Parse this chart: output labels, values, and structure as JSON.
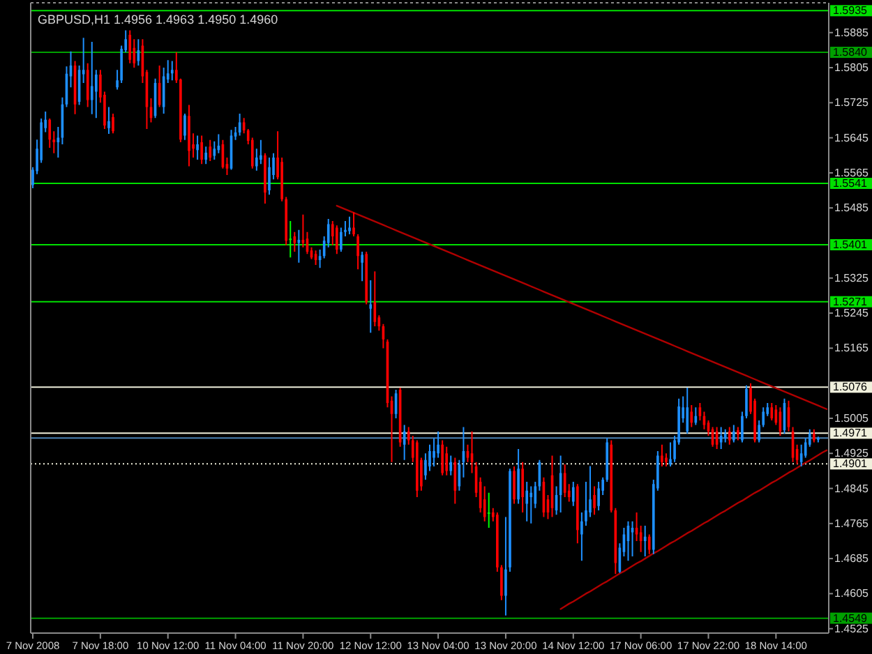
{
  "chart_data": {
    "type": "candlestick",
    "title": "GBPUSD,H1 1.4956 1.4963 1.4950 1.4960",
    "categories": [
      "7 Nov 2008",
      null,
      null,
      null,
      null,
      null,
      null,
      null,
      null,
      null,
      null,
      null,
      null,
      null,
      null,
      null,
      "7 Nov 18:00",
      null,
      null,
      null,
      null,
      null,
      null,
      null,
      null,
      null,
      null,
      null,
      null,
      null,
      null,
      null,
      "10 Nov 12:00",
      null,
      null,
      null,
      null,
      null,
      null,
      null,
      null,
      null,
      null,
      null,
      null,
      null,
      null,
      null,
      "11 Nov 04:00",
      null,
      null,
      null,
      null,
      null,
      null,
      null,
      null,
      null,
      null,
      null,
      null,
      null,
      null,
      null,
      "11 Nov 20:00",
      null,
      null,
      null,
      null,
      null,
      null,
      null,
      null,
      null,
      null,
      null,
      null,
      null,
      null,
      null,
      "12 Nov 12:00",
      null,
      null,
      null,
      null,
      null,
      null,
      null,
      null,
      null,
      null,
      null,
      null,
      null,
      null,
      null,
      "13 Nov 04:00",
      null,
      null,
      null,
      null,
      null,
      null,
      null,
      null,
      null,
      null,
      null,
      null,
      null,
      null,
      null,
      "13 Nov 20:00",
      null,
      null,
      null,
      null,
      null,
      null,
      null,
      null,
      null,
      null,
      null,
      null,
      null,
      null,
      null,
      "14 Nov 12:00",
      null,
      null,
      null,
      null,
      null,
      null,
      null,
      null,
      null,
      null,
      null,
      null,
      null,
      null,
      null,
      "17 Nov 06:00",
      null,
      null,
      null,
      null,
      null,
      null,
      null,
      null,
      null,
      null,
      null,
      null,
      null,
      null,
      null,
      "17 Nov 22:00",
      null,
      null,
      null,
      null,
      null,
      null,
      null,
      null,
      null,
      null,
      null,
      null,
      null,
      null,
      null,
      "18 Nov 14:00",
      null,
      null,
      null,
      null,
      null,
      null,
      null,
      null,
      null,
      null,
      null,
      null
    ],
    "ohlc": [
      [
        1.5537,
        1.5578,
        1.553,
        1.5572
      ],
      [
        1.5569,
        1.5641,
        1.5562,
        1.562
      ],
      [
        1.5594,
        1.5689,
        1.5588,
        1.568
      ],
      [
        1.5667,
        1.5705,
        1.5658,
        1.5686
      ],
      [
        1.5686,
        1.5689,
        1.5622,
        1.5641
      ],
      [
        1.5641,
        1.566,
        1.561,
        1.5635
      ],
      [
        1.5635,
        1.567,
        1.56,
        1.5645
      ],
      [
        1.5645,
        1.5737,
        1.563,
        1.5721
      ],
      [
        1.5721,
        1.5808,
        1.5715,
        1.5791
      ],
      [
        1.5785,
        1.5842,
        1.576,
        1.581
      ],
      [
        1.581,
        1.582,
        1.5699,
        1.5721
      ],
      [
        1.5727,
        1.581,
        1.572,
        1.58
      ],
      [
        1.579,
        1.5873,
        1.577,
        1.58
      ],
      [
        1.58,
        1.5815,
        1.5715,
        1.5731
      ],
      [
        1.5731,
        1.5864,
        1.5699,
        1.5763
      ],
      [
        1.575,
        1.58,
        1.569,
        1.5789
      ],
      [
        1.5789,
        1.58,
        1.5725,
        1.5737
      ],
      [
        1.5743,
        1.575,
        1.5665,
        1.5673
      ],
      [
        1.5667,
        1.5715,
        1.5654,
        1.5683
      ],
      [
        1.5692,
        1.57,
        1.5655,
        1.566
      ],
      [
        1.576,
        1.58,
        1.5755,
        1.5776
      ],
      [
        1.5776,
        1.5855,
        1.577,
        1.5848
      ],
      [
        1.5845,
        1.589,
        1.584,
        1.587
      ],
      [
        1.588,
        1.589,
        1.5815,
        1.5823
      ],
      [
        1.585,
        1.587,
        1.5805,
        1.5815
      ],
      [
        1.582,
        1.587,
        1.581,
        1.5845
      ],
      [
        1.5855,
        1.587,
        1.577,
        1.5785
      ],
      [
        1.5795,
        1.58,
        1.5665,
        1.5715
      ],
      [
        1.5715,
        1.5735,
        1.568,
        1.569
      ],
      [
        1.5695,
        1.578,
        1.569,
        1.577
      ],
      [
        1.577,
        1.581,
        1.5715,
        1.572
      ],
      [
        1.5715,
        1.5805,
        1.57,
        1.5785
      ],
      [
        1.5778,
        1.5822,
        1.577,
        1.5792
      ],
      [
        1.5792,
        1.582,
        1.5776,
        1.58
      ],
      [
        1.58,
        1.584,
        1.577,
        1.5776
      ],
      [
        1.5778,
        1.578,
        1.5635,
        1.5641
      ],
      [
        1.565,
        1.57,
        1.564,
        1.5696
      ],
      [
        1.5695,
        1.572,
        1.558,
        1.5615
      ],
      [
        1.563,
        1.5655,
        1.56,
        1.562
      ],
      [
        1.5617,
        1.565,
        1.5595,
        1.563
      ],
      [
        1.5635,
        1.565,
        1.5585,
        1.5595
      ],
      [
        1.5595,
        1.5625,
        1.5585,
        1.5611
      ],
      [
        1.5625,
        1.564,
        1.5592,
        1.56
      ],
      [
        1.5604,
        1.5637,
        1.5595,
        1.562
      ],
      [
        1.5617,
        1.5653,
        1.561,
        1.5627
      ],
      [
        1.563,
        1.564,
        1.5575,
        1.5578
      ],
      [
        1.5585,
        1.56,
        1.556,
        1.5575
      ],
      [
        1.5575,
        1.5663,
        1.5572,
        1.565
      ],
      [
        1.5648,
        1.567,
        1.564,
        1.5657
      ],
      [
        1.5657,
        1.57,
        1.565,
        1.568
      ],
      [
        1.568,
        1.569,
        1.5655,
        1.5662
      ],
      [
        1.5662,
        1.5665,
        1.563,
        1.5638
      ],
      [
        1.564,
        1.5645,
        1.5575,
        1.558
      ],
      [
        1.558,
        1.562,
        1.557,
        1.56
      ],
      [
        1.5595,
        1.564,
        1.5585,
        1.5605
      ],
      [
        1.5605,
        1.561,
        1.5495,
        1.552
      ],
      [
        1.5525,
        1.56,
        1.5515,
        1.5578
      ],
      [
        1.556,
        1.561,
        1.555,
        1.56
      ],
      [
        1.56,
        1.566,
        1.555,
        1.5555
      ],
      [
        1.559,
        1.56,
        1.55,
        1.5505
      ],
      [
        1.5505,
        1.551,
        1.54,
        1.541
      ],
      [
        1.5415,
        1.5455,
        1.5372,
        1.5415
      ],
      [
        1.542,
        1.543,
        1.5385,
        1.5405
      ],
      [
        1.5405,
        1.5435,
        1.536,
        1.5412
      ],
      [
        1.5412,
        1.547,
        1.5395,
        1.5405
      ],
      [
        1.5415,
        1.543,
        1.538,
        1.5385
      ],
      [
        1.5388,
        1.5395,
        1.5368,
        1.5372
      ],
      [
        1.538,
        1.5388,
        1.5355,
        1.5366
      ],
      [
        1.5366,
        1.539,
        1.5348,
        1.5375
      ],
      [
        1.5375,
        1.542,
        1.537,
        1.541
      ],
      [
        1.5405,
        1.546,
        1.5395,
        1.5448
      ],
      [
        1.5448,
        1.5455,
        1.54,
        1.542
      ],
      [
        1.544,
        1.5445,
        1.538,
        1.539
      ],
      [
        1.539,
        1.544,
        1.5385,
        1.543
      ],
      [
        1.543,
        1.5455,
        1.542,
        1.5435
      ],
      [
        1.5432,
        1.5465,
        1.5425,
        1.544
      ],
      [
        1.544,
        1.5475,
        1.542,
        1.5425
      ],
      [
        1.542,
        1.5425,
        1.5345,
        1.5375
      ],
      [
        1.536,
        1.5385,
        1.5318,
        1.5378
      ],
      [
        1.538,
        1.5385,
        1.5265,
        1.527
      ],
      [
        1.5255,
        1.532,
        1.52,
        1.5265
      ],
      [
        1.527,
        1.534,
        1.5215,
        1.5225
      ],
      [
        1.5235,
        1.524,
        1.5205,
        1.5215
      ],
      [
        1.5215,
        1.522,
        1.5165,
        1.5185
      ],
      [
        1.518,
        1.5185,
        1.503,
        1.504
      ],
      [
        1.5045,
        1.5055,
        1.4905,
        1.5015
      ],
      [
        1.5015,
        1.507,
        1.5005,
        1.5062
      ],
      [
        1.507,
        1.5075,
        1.494,
        1.495
      ],
      [
        1.4945,
        1.499,
        1.491,
        1.4975
      ],
      [
        1.4975,
        1.4985,
        1.4945,
        1.4955
      ],
      [
        1.4955,
        1.4965,
        1.4905,
        1.4915
      ],
      [
        1.495,
        1.4955,
        1.4825,
        1.484
      ],
      [
        1.491,
        1.4915,
        1.484,
        1.485
      ],
      [
        1.4875,
        1.4925,
        1.4865,
        1.491
      ],
      [
        1.4895,
        1.4945,
        1.4885,
        1.493
      ],
      [
        1.4915,
        1.496,
        1.4895,
        1.493
      ],
      [
        1.4925,
        1.4975,
        1.4915,
        1.4945
      ],
      [
        1.4945,
        1.4955,
        1.4875,
        1.488
      ],
      [
        1.4925,
        1.494,
        1.4875,
        1.4885
      ],
      [
        1.4885,
        1.492,
        1.4875,
        1.4905
      ],
      [
        1.4905,
        1.4915,
        1.481,
        1.484
      ],
      [
        1.485,
        1.491,
        1.484,
        1.49
      ],
      [
        1.4905,
        1.4985,
        1.487,
        1.493
      ],
      [
        1.493,
        1.4945,
        1.4905,
        1.4915
      ],
      [
        1.4925,
        1.4975,
        1.488,
        1.4905
      ],
      [
        1.4895,
        1.4905,
        1.4825,
        1.4835
      ],
      [
        1.486,
        1.487,
        1.479,
        1.48
      ],
      [
        1.482,
        1.485,
        1.477,
        1.478
      ],
      [
        1.479,
        1.4835,
        1.4755,
        1.479
      ],
      [
        1.479,
        1.48,
        1.477,
        1.478
      ],
      [
        1.4785,
        1.479,
        1.4655,
        1.4665
      ],
      [
        1.4665,
        1.467,
        1.459,
        1.46
      ],
      [
        1.46,
        1.478,
        1.4555,
        1.466
      ],
      [
        1.4665,
        1.489,
        1.4655,
        1.4885
      ],
      [
        1.4885,
        1.4895,
        1.481,
        1.482
      ],
      [
        1.482,
        1.4935,
        1.481,
        1.489
      ],
      [
        1.489,
        1.4905,
        1.479,
        1.4825
      ],
      [
        1.481,
        1.486,
        1.477,
        1.484
      ],
      [
        1.4825,
        1.485,
        1.4765,
        1.4835
      ],
      [
        1.481,
        1.486,
        1.48,
        1.485
      ],
      [
        1.485,
        1.491,
        1.484,
        1.4905
      ],
      [
        1.486,
        1.487,
        1.478,
        1.479
      ],
      [
        1.482,
        1.483,
        1.4775,
        1.479
      ],
      [
        1.4875,
        1.492,
        1.478,
        1.48
      ],
      [
        1.4795,
        1.485,
        1.4785,
        1.483
      ],
      [
        1.483,
        1.492,
        1.479,
        1.488
      ],
      [
        1.488,
        1.49,
        1.4825,
        1.4835
      ],
      [
        1.484,
        1.4855,
        1.4815,
        1.4825
      ],
      [
        1.4815,
        1.486,
        1.4805,
        1.4848
      ],
      [
        1.485,
        1.4855,
        1.472,
        1.475
      ],
      [
        1.474,
        1.479,
        1.468,
        1.477
      ],
      [
        1.477,
        1.486,
        1.476,
        1.4795
      ],
      [
        1.479,
        1.4896,
        1.478,
        1.482
      ],
      [
        1.483,
        1.485,
        1.4785,
        1.48
      ],
      [
        1.4805,
        1.486,
        1.4795,
        1.4845
      ],
      [
        1.484,
        1.487,
        1.483,
        1.4865
      ],
      [
        1.4865,
        1.496,
        1.486,
        1.495
      ],
      [
        1.4945,
        1.4955,
        1.479,
        1.4795
      ],
      [
        1.4795,
        1.48,
        1.465,
        1.4675
      ],
      [
        1.4655,
        1.472,
        1.4652,
        1.471
      ],
      [
        1.47,
        1.4755,
        1.469,
        1.474
      ],
      [
        1.4725,
        1.477,
        1.468,
        1.476
      ],
      [
        1.4745,
        1.477,
        1.469,
        1.4755
      ],
      [
        1.4755,
        1.479,
        1.4725,
        1.474
      ],
      [
        1.4745,
        1.476,
        1.47,
        1.4725
      ],
      [
        1.4725,
        1.476,
        1.469,
        1.4735
      ],
      [
        1.4735,
        1.474,
        1.4695,
        1.4705
      ],
      [
        1.4705,
        1.4865,
        1.4695,
        1.4855
      ],
      [
        1.4845,
        1.493,
        1.484,
        1.492
      ],
      [
        1.492,
        1.4945,
        1.4895,
        1.4905
      ],
      [
        1.4915,
        1.4925,
        1.4895,
        1.4905
      ],
      [
        1.49,
        1.495,
        1.4895,
        1.4912
      ],
      [
        1.4912,
        1.4965,
        1.4905,
        1.4955
      ],
      [
        1.495,
        1.505,
        1.4945,
        1.5032
      ],
      [
        1.5005,
        1.5055,
        1.4995,
        1.503
      ],
      [
        1.4975,
        1.5075,
        1.497,
        1.503
      ],
      [
        1.502,
        1.5035,
        1.4985,
        1.4995
      ],
      [
        1.4995,
        1.503,
        1.499,
        1.501
      ],
      [
        1.503,
        1.504,
        1.5,
        1.501
      ],
      [
        1.501,
        1.502,
        1.498,
        1.499
      ],
      [
        1.4995,
        1.5,
        1.4965,
        1.4975
      ],
      [
        1.498,
        1.4985,
        1.494,
        1.4945
      ],
      [
        1.4975,
        1.4985,
        1.4935,
        1.4945
      ],
      [
        1.495,
        1.4985,
        1.4935,
        1.4965
      ],
      [
        1.496,
        1.498,
        1.495,
        1.497
      ],
      [
        1.4975,
        1.4985,
        1.4945,
        1.4955
      ],
      [
        1.4955,
        1.499,
        1.495,
        1.4975
      ],
      [
        1.4978,
        1.4985,
        1.4955,
        1.4968
      ],
      [
        1.4955,
        1.502,
        1.495,
        1.501
      ],
      [
        1.501,
        1.508,
        1.5005,
        1.5072
      ],
      [
        1.5075,
        1.5085,
        1.5015,
        1.502
      ],
      [
        1.5045,
        1.505,
        1.495,
        1.4955
      ],
      [
        1.4955,
        1.5,
        1.495,
        1.499
      ],
      [
        1.499,
        1.503,
        1.4985,
        1.502
      ],
      [
        1.5015,
        1.504,
        1.501,
        1.503
      ],
      [
        1.503,
        1.504,
        1.5,
        1.5005
      ],
      [
        1.5025,
        1.5035,
        1.499,
        1.4995
      ],
      [
        1.502,
        1.503,
        1.4965,
        1.4975
      ],
      [
        1.4978,
        1.505,
        1.497,
        1.504
      ],
      [
        1.503,
        1.5045,
        1.4975,
        1.4985
      ],
      [
        1.4975,
        1.4985,
        1.4905,
        1.4915
      ],
      [
        1.4935,
        1.4945,
        1.49,
        1.491
      ],
      [
        1.4905,
        1.4945,
        1.4895,
        1.4925
      ],
      [
        1.492,
        1.496,
        1.4915,
        1.495
      ],
      [
        1.4945,
        1.498,
        1.494,
        1.497
      ],
      [
        1.497,
        1.498,
        1.495,
        1.4955
      ],
      [
        1.4956,
        1.4963,
        1.495,
        1.496
      ],
      null,
      null
    ],
    "colors": [
      "#1e90ff",
      "#1e90ff",
      "#1e90ff",
      "#1e90ff",
      "#ff0000",
      "#ff0000",
      "#1e90ff",
      "#1e90ff",
      "#1e90ff",
      "#1e90ff",
      "#ff0000",
      "#1e90ff",
      "#1e90ff",
      "#ff0000",
      "#1e90ff",
      "#1e90ff",
      "#ff0000",
      "#ff0000",
      "#1e90ff",
      "#ff0000",
      "#1e90ff",
      "#1e90ff",
      "#1e90ff",
      "#ff0000",
      "#ff0000",
      "#1e90ff",
      "#ff0000",
      "#ff0000",
      "#ff0000",
      "#1e90ff",
      "#ff0000",
      "#1e90ff",
      "#1e90ff",
      "#1e90ff",
      "#ff0000",
      "#ff0000",
      "#1e90ff",
      "#ff0000",
      "#ff0000",
      "#1e90ff",
      "#ff0000",
      "#1e90ff",
      "#ff0000",
      "#1e90ff",
      "#1e90ff",
      "#ff0000",
      "#ff0000",
      "#1e90ff",
      "#1e90ff",
      "#1e90ff",
      "#ff0000",
      "#ff0000",
      "#ff0000",
      "#1e90ff",
      "#1e90ff",
      "#ff0000",
      "#1e90ff",
      "#1e90ff",
      "#ff0000",
      "#ff0000",
      "#ff0000",
      "#00ff00",
      "#ff0000",
      "#1e90ff",
      "#ff0000",
      "#ff0000",
      "#ff0000",
      "#ff0000",
      "#1e90ff",
      "#1e90ff",
      "#1e90ff",
      "#ff0000",
      "#ff0000",
      "#1e90ff",
      "#1e90ff",
      "#1e90ff",
      "#ff0000",
      "#ff0000",
      "#1e90ff",
      "#ff0000",
      "#1e90ff",
      "#ff0000",
      "#ff0000",
      "#ff0000",
      "#ff0000",
      "#ff0000",
      "#1e90ff",
      "#ff0000",
      "#1e90ff",
      "#ff0000",
      "#ff0000",
      "#ff0000",
      "#ff0000",
      "#1e90ff",
      "#1e90ff",
      "#1e90ff",
      "#1e90ff",
      "#ff0000",
      "#ff0000",
      "#1e90ff",
      "#ff0000",
      "#1e90ff",
      "#1e90ff",
      "#ff0000",
      "#ff0000",
      "#ff0000",
      "#ff0000",
      "#ff0000",
      "#00ff00",
      "#ff0000",
      "#ff0000",
      "#ff0000",
      "#1e90ff",
      "#1e90ff",
      "#ff0000",
      "#1e90ff",
      "#ff0000",
      "#1e90ff",
      "#1e90ff",
      "#1e90ff",
      "#1e90ff",
      "#ff0000",
      "#ff0000",
      "#ff0000",
      "#1e90ff",
      "#1e90ff",
      "#ff0000",
      "#ff0000",
      "#1e90ff",
      "#ff0000",
      "#1e90ff",
      "#1e90ff",
      "#1e90ff",
      "#ff0000",
      "#1e90ff",
      "#1e90ff",
      "#1e90ff",
      "#ff0000",
      "#ff0000",
      "#1e90ff",
      "#1e90ff",
      "#1e90ff",
      "#1e90ff",
      "#ff0000",
      "#ff0000",
      "#1e90ff",
      "#ff0000",
      "#1e90ff",
      "#1e90ff",
      "#ff0000",
      "#ff0000",
      "#1e90ff",
      "#1e90ff",
      "#1e90ff",
      "#1e90ff",
      "#1e90ff",
      "#ff0000",
      "#1e90ff",
      "#ff0000",
      "#ff0000",
      "#ff0000",
      "#ff0000",
      "#ff0000",
      "#1e90ff",
      "#1e90ff",
      "#ff0000",
      "#1e90ff",
      "#ff0000",
      "#1e90ff",
      "#1e90ff",
      "#ff0000",
      "#ff0000",
      "#1e90ff",
      "#1e90ff",
      "#1e90ff",
      "#ff0000",
      "#ff0000",
      "#ff0000",
      "#1e90ff",
      "#ff0000",
      "#ff0000",
      "#ff0000",
      "#1e90ff",
      "#1e90ff",
      "#1e90ff",
      "#ff0000",
      "#1e90ff",
      null,
      null
    ],
    "series": [
      {
        "type": "line",
        "color": "#b00000",
        "values": [
          null,
          null,
          null,
          null,
          null,
          null,
          null,
          null,
          null,
          null,
          null,
          null,
          null,
          null,
          null,
          null,
          null,
          null,
          null,
          null,
          null,
          null,
          null,
          null,
          null,
          null,
          null,
          null,
          null,
          null,
          null,
          null,
          null,
          null,
          null,
          null,
          null,
          null,
          null,
          null,
          null,
          null,
          null,
          null,
          null,
          null,
          null,
          null,
          null,
          null,
          null,
          null,
          null,
          null,
          null,
          null,
          null,
          null,
          null,
          null,
          null,
          null,
          null,
          null,
          null,
          null,
          null,
          null,
          null,
          null,
          null,
          null,
          1.549,
          1.5486,
          1.5482,
          1.5478,
          1.5474,
          1.547,
          1.5466,
          1.5462,
          1.5458,
          1.5454,
          1.545,
          1.5446,
          1.5442,
          1.5438,
          1.5434,
          1.543,
          1.5426,
          1.5422,
          1.5418,
          1.5414,
          1.541,
          1.5406,
          1.5402,
          1.5398,
          1.5394,
          1.539,
          1.5386,
          1.5382,
          1.5378,
          1.5374,
          1.537,
          1.5366,
          1.5362,
          1.5358,
          1.5354,
          1.535,
          1.5346,
          1.5342,
          1.5338,
          1.5334,
          1.533,
          1.5326,
          1.5322,
          1.5318,
          1.5314,
          1.531,
          1.5306,
          1.5302,
          1.5298,
          1.5294,
          1.529,
          1.5286,
          1.5282,
          1.5278,
          1.5274,
          1.527,
          1.5266,
          1.5262,
          1.5258,
          1.5254,
          1.525,
          1.5246,
          1.5242,
          1.5238,
          1.5234,
          1.523,
          1.5226,
          1.5222,
          1.5218,
          1.5214,
          1.521,
          1.5206,
          1.5202,
          1.5198,
          1.5194,
          1.519,
          1.5186,
          1.5182,
          1.5178,
          1.5174,
          1.517,
          1.5166,
          1.5162,
          1.5158,
          1.5154,
          1.515,
          1.5146,
          1.5142,
          1.5138,
          1.5134,
          1.513,
          1.5126,
          1.5122,
          1.5118,
          1.5114,
          1.511,
          1.5106,
          1.5102,
          1.5098,
          1.5094,
          1.509,
          1.5086,
          1.5082,
          1.5078,
          1.5074,
          1.507,
          1.5066,
          1.5062,
          1.5058,
          1.5054,
          1.505,
          1.5046,
          1.5042,
          1.5038,
          1.5034,
          1.503,
          1.5026
        ]
      },
      {
        "type": "line",
        "color": "#b00000",
        "values": [
          null,
          null,
          null,
          null,
          null,
          null,
          null,
          null,
          null,
          null,
          null,
          null,
          null,
          null,
          null,
          null,
          null,
          null,
          null,
          null,
          null,
          null,
          null,
          null,
          null,
          null,
          null,
          null,
          null,
          null,
          null,
          null,
          null,
          null,
          null,
          null,
          null,
          null,
          null,
          null,
          null,
          null,
          null,
          null,
          null,
          null,
          null,
          null,
          null,
          null,
          null,
          null,
          null,
          null,
          null,
          null,
          null,
          null,
          null,
          null,
          null,
          null,
          null,
          null,
          null,
          null,
          null,
          null,
          null,
          null,
          null,
          null,
          null,
          null,
          null,
          null,
          null,
          null,
          null,
          null,
          null,
          null,
          null,
          null,
          null,
          null,
          null,
          null,
          null,
          null,
          null,
          null,
          null,
          null,
          null,
          null,
          null,
          null,
          null,
          null,
          null,
          null,
          null,
          null,
          null,
          null,
          null,
          null,
          null,
          null,
          null,
          null,
          null,
          null,
          null,
          null,
          null,
          null,
          null,
          null,
          null,
          null,
          null,
          null,
          null,
          1.457,
          1.4576,
          1.4582,
          1.4587,
          1.4593,
          1.4599,
          1.4605,
          1.461,
          1.4616,
          1.4622,
          1.4628,
          1.4633,
          1.4639,
          1.4645,
          1.4651,
          1.4656,
          1.4662,
          1.4668,
          1.4674,
          1.4679,
          1.4685,
          1.4691,
          1.4697,
          1.4702,
          1.4708,
          1.4714,
          1.472,
          1.4725,
          1.4731,
          1.4737,
          1.4743,
          1.4748,
          1.4754,
          1.476,
          1.4766,
          1.4771,
          1.4777,
          1.4783,
          1.4789,
          1.4794,
          1.48,
          1.4806,
          1.4812,
          1.4817,
          1.4823,
          1.4829,
          1.4835,
          1.484,
          1.4846,
          1.4852,
          1.4858,
          1.4863,
          1.4869,
          1.4875,
          1.4881,
          1.4886,
          1.4892,
          1.4898,
          1.4904,
          1.4909,
          1.4915,
          1.4921,
          1.4927,
          1.4932
        ]
      }
    ],
    "ylim": [
      1.4515,
      1.5953
    ],
    "yticks": [
      1.5885,
      1.5805,
      1.5725,
      1.5645,
      1.5565,
      1.5485,
      1.5325,
      1.5245,
      1.5165,
      1.5005,
      1.4925,
      1.4845,
      1.4765,
      1.4685,
      1.4605,
      1.4525
    ],
    "ref_lines": [
      {
        "axis": "y",
        "value": 1.5935,
        "label": "1.5935",
        "color": "#00e000"
      },
      {
        "axis": "y",
        "value": 1.584,
        "label": "1.5840",
        "color": "#00a000"
      },
      {
        "axis": "y",
        "value": 1.5541,
        "label": "1.5541",
        "color": "#00e000"
      },
      {
        "axis": "y",
        "value": 1.5401,
        "label": "1.5401",
        "color": "#00e000"
      },
      {
        "axis": "y",
        "value": 1.5271,
        "label": "1.5271",
        "color": "#00e000"
      },
      {
        "axis": "y",
        "value": 1.5076,
        "label": "1.5076",
        "color": "#f0f0dc"
      },
      {
        "axis": "y",
        "value": 1.496,
        "color": "#4a82b4"
      },
      {
        "axis": "y",
        "value": 1.4971,
        "label": "1.4971",
        "color": "#f0f0dc"
      },
      {
        "axis": "y",
        "value": 1.4901,
        "label": "1.4901",
        "color": "#f0f0dc",
        "line_style": "dotted"
      },
      {
        "axis": "y",
        "value": 1.4549,
        "label": "1.4549",
        "color": "#00a000"
      }
    ]
  }
}
